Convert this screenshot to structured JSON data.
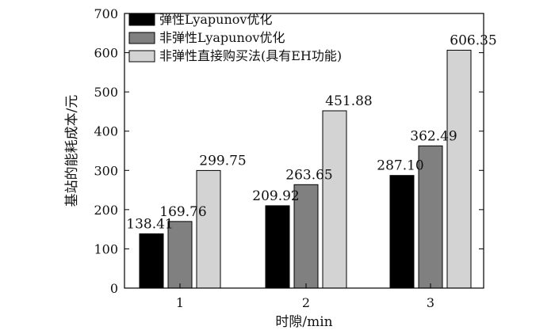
{
  "chart_data": {
    "type": "bar",
    "title": "",
    "xlabel": "时隙/min",
    "ylabel": "基站的能耗成本/元",
    "categories": [
      "1",
      "2",
      "3"
    ],
    "ylim": [
      0,
      700
    ],
    "yticks": [
      "0",
      "100",
      "200",
      "300",
      "400",
      "500",
      "600",
      "700"
    ],
    "grid": false,
    "legend_position": "top-left",
    "series": [
      {
        "name": "弹性Lyapunov优化",
        "color": "#000000",
        "values": [
          138.41,
          209.92,
          287.1
        ],
        "labels": [
          "138.41",
          "209.92",
          "287.10"
        ]
      },
      {
        "name": "非弹性Lyapunov优化",
        "color": "#808080",
        "values": [
          169.76,
          263.65,
          362.49
        ],
        "labels": [
          "169.76",
          "263.65",
          "362.49"
        ]
      },
      {
        "name": "非弹性直接购买法(具有EH功能)",
        "color": "#d3d3d3",
        "values": [
          299.75,
          451.88,
          606.35
        ],
        "labels": [
          "299.75",
          "451.88",
          "606.35"
        ]
      }
    ]
  }
}
